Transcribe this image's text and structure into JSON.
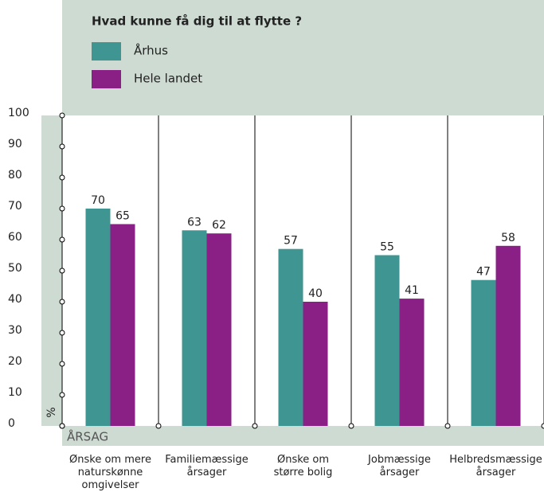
{
  "chart_data": {
    "type": "bar",
    "title": "Hvad kunne få dig til at flytte ?",
    "y_label": "%",
    "x_label": "ÅRSAG",
    "categories": [
      "Ønske om mere\nnaturskønne\nomgivelser",
      "Familiemæssige\nårsager",
      "Ønske om\nstørre bolig",
      "Jobmæssige\nårsager",
      "Helbredsmæssige\nårsager"
    ],
    "series": [
      {
        "name": "Århus",
        "color": "#3f9591",
        "values": [
          70,
          63,
          57,
          55,
          47
        ]
      },
      {
        "name": "Hele landet",
        "color": "#8a1f85",
        "values": [
          65,
          62,
          40,
          41,
          58
        ]
      }
    ],
    "ylim": [
      0,
      100
    ],
    "yticks": [
      0,
      10,
      20,
      30,
      40,
      50,
      60,
      70,
      80,
      90,
      100
    ]
  }
}
